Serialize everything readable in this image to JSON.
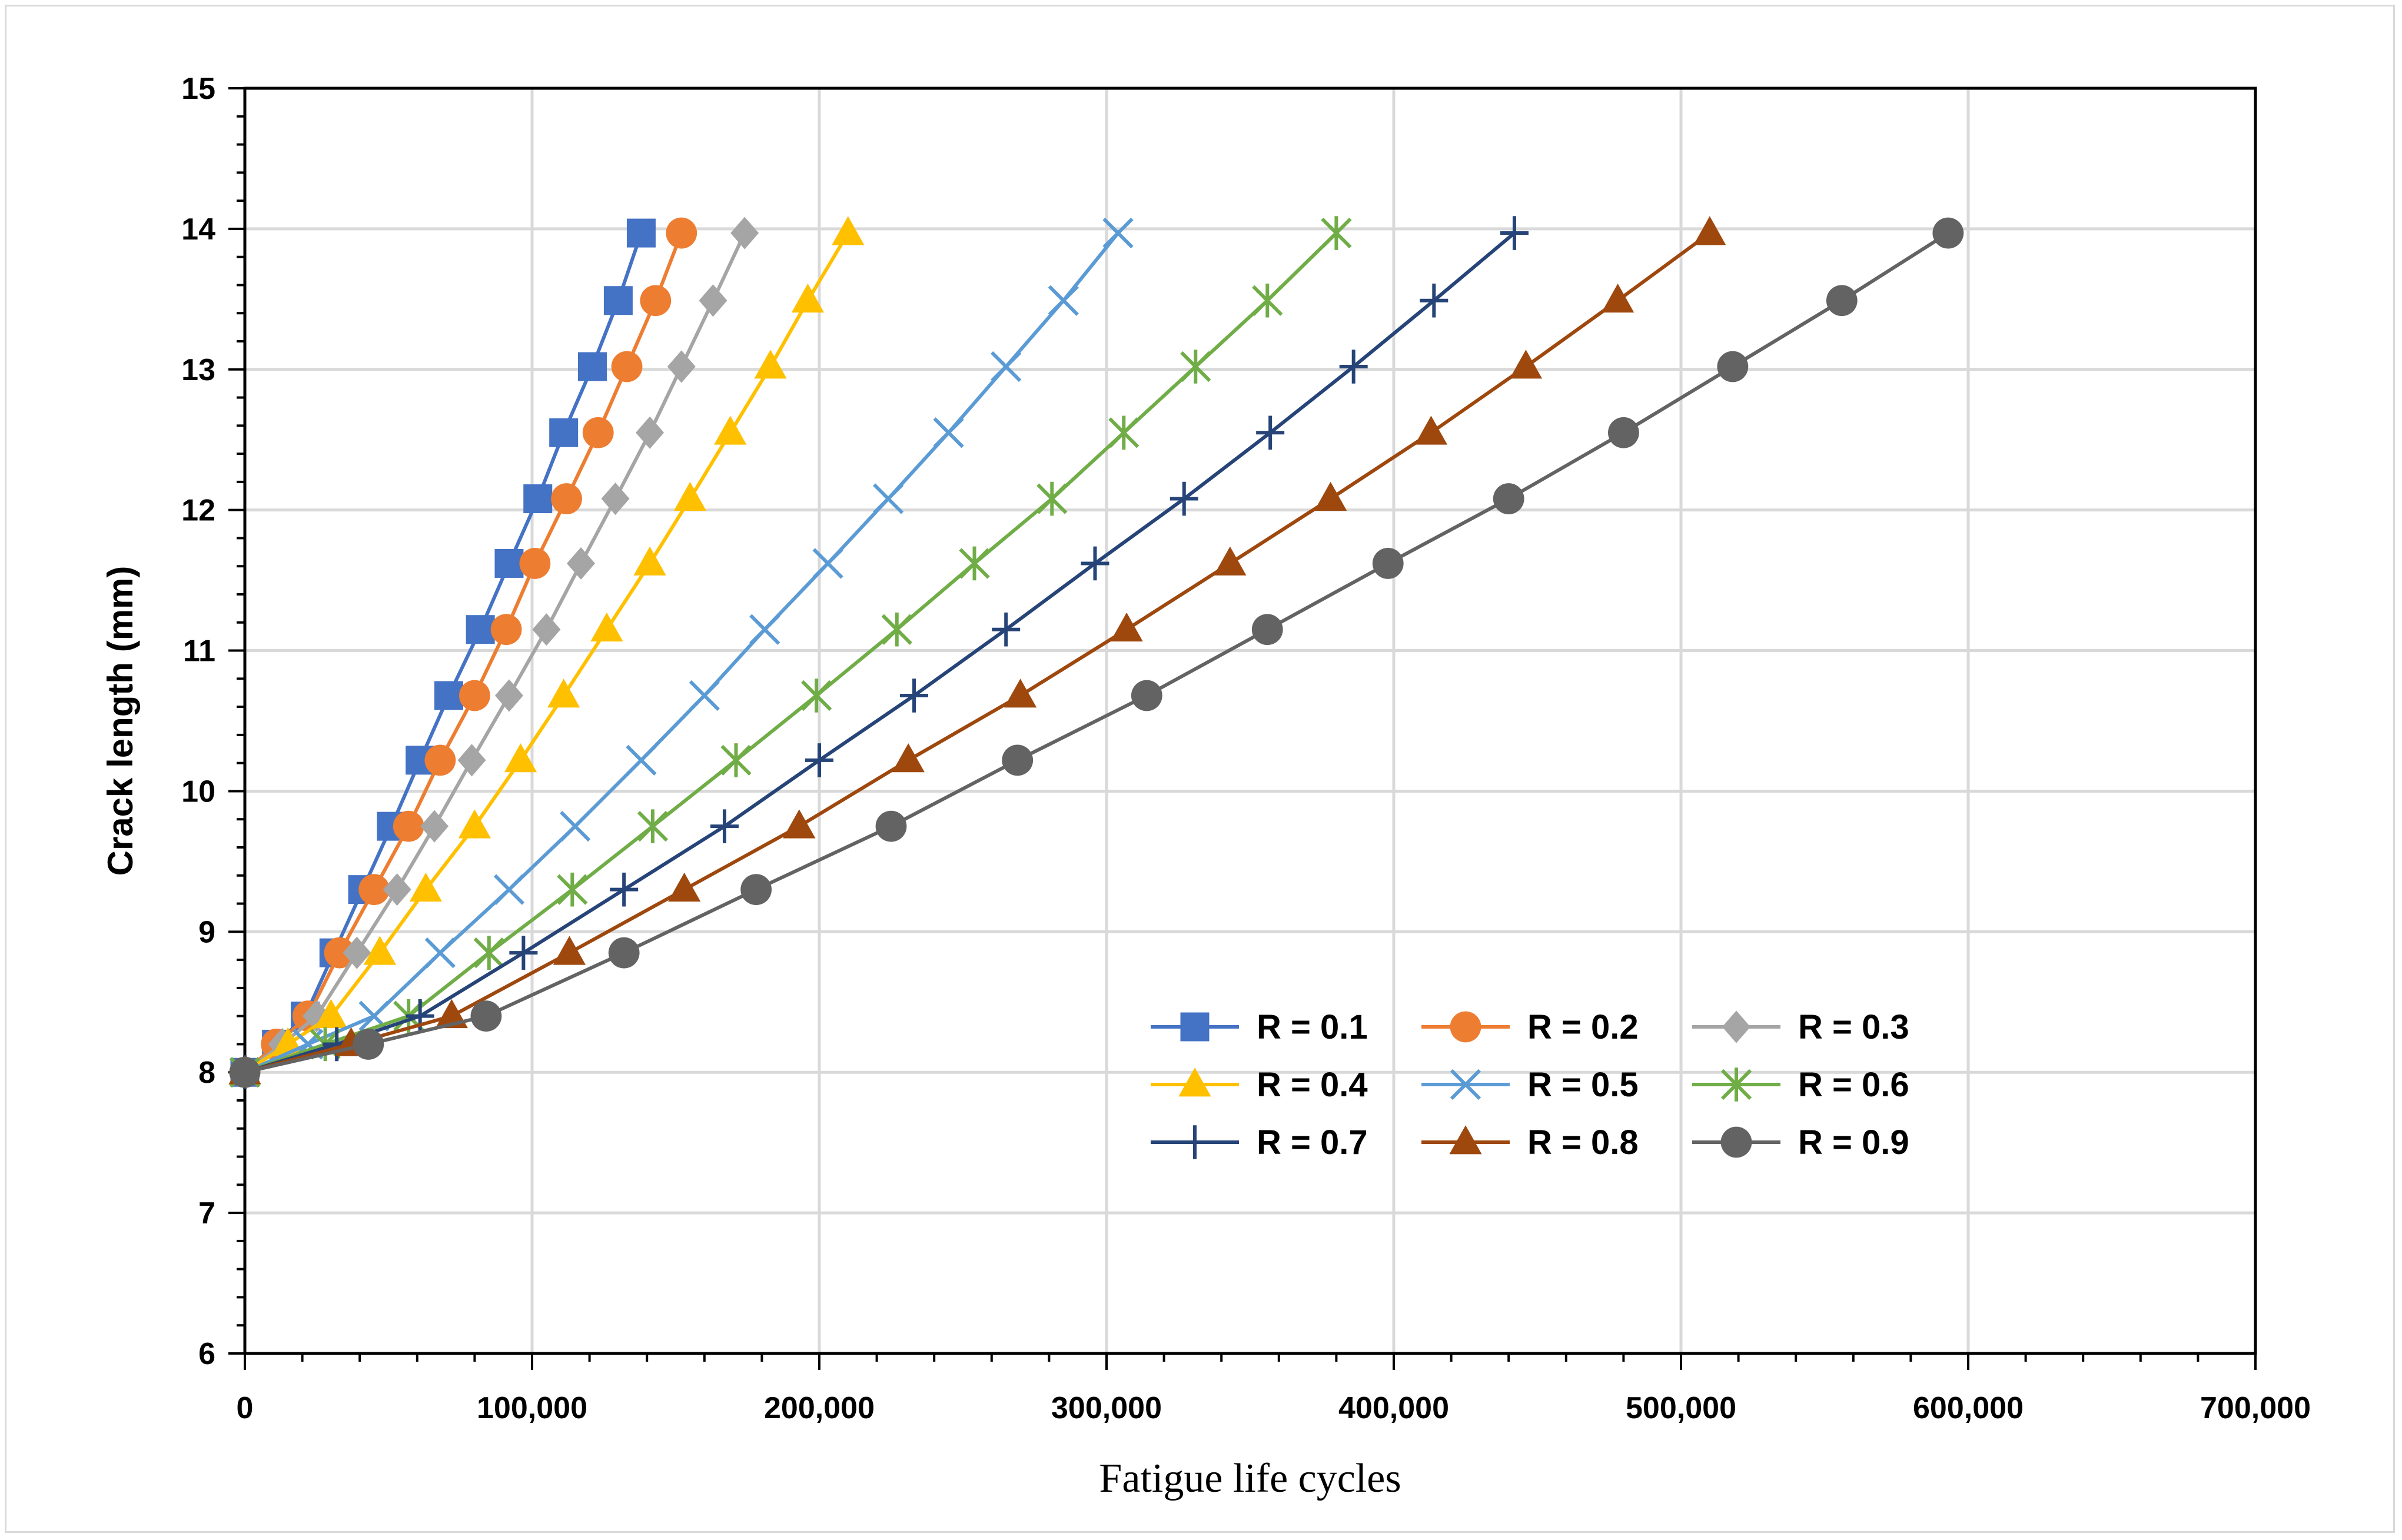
{
  "chart_data": {
    "type": "line",
    "title": "",
    "xlabel": "Fatigue life cycles",
    "ylabel": "Crack length (mm)",
    "xlim": [
      0,
      700000
    ],
    "ylim": [
      6,
      15
    ],
    "x_ticks": [
      "0",
      "100,000",
      "200,000",
      "300,000",
      "400,000",
      "500,000",
      "600,000",
      "700,000"
    ],
    "y_ticks": [
      "6",
      "7",
      "8",
      "9",
      "10",
      "11",
      "12",
      "13",
      "14",
      "15"
    ],
    "grid": true,
    "legend_position": "lower-right",
    "y": [
      8.0,
      8.2,
      8.4,
      8.85,
      9.3,
      9.75,
      10.22,
      10.68,
      11.15,
      11.62,
      12.08,
      12.55,
      13.02,
      13.49,
      13.97
    ],
    "series": [
      {
        "name": "R = 0.1",
        "color": "#4472c4",
        "marker": "square",
        "x": [
          0,
          11000,
          21000,
          31000,
          41000,
          51000,
          61000,
          71000,
          82000,
          92000,
          102000,
          111000,
          121000,
          130000,
          138000
        ]
      },
      {
        "name": "R = 0.2",
        "color": "#ed7d31",
        "marker": "circle",
        "x": [
          0,
          11000,
          22000,
          33000,
          45000,
          57000,
          68000,
          80000,
          91000,
          101000,
          112000,
          123000,
          133000,
          143000,
          152000
        ]
      },
      {
        "name": "R = 0.3",
        "color": "#a5a5a5",
        "marker": "diamond",
        "x": [
          0,
          13000,
          25000,
          39000,
          53000,
          66000,
          79000,
          92000,
          105000,
          117000,
          129000,
          141000,
          152000,
          163000,
          174000
        ]
      },
      {
        "name": "R = 0.4",
        "color": "#ffc000",
        "marker": "triangle",
        "x": [
          0,
          15000,
          30000,
          47000,
          63000,
          80000,
          96000,
          111000,
          126000,
          141000,
          155000,
          169000,
          183000,
          196000,
          210000
        ]
      },
      {
        "name": "R = 0.5",
        "color": "#5b9bd5",
        "marker": "x",
        "x": [
          0,
          22000,
          45000,
          68000,
          92000,
          115000,
          138000,
          160000,
          181000,
          203000,
          224000,
          245000,
          265000,
          285000,
          304000
        ]
      },
      {
        "name": "R = 0.6",
        "color": "#70ad47",
        "marker": "asterisk",
        "x": [
          0,
          28000,
          57000,
          85000,
          114000,
          142000,
          171000,
          199000,
          227000,
          254000,
          281000,
          306000,
          331000,
          356000,
          380000
        ]
      },
      {
        "name": "R = 0.7",
        "color": "#264478",
        "marker": "plus",
        "x": [
          0,
          32000,
          61000,
          97000,
          132000,
          167000,
          200000,
          233000,
          265000,
          296000,
          327000,
          357000,
          386000,
          414000,
          442000
        ]
      },
      {
        "name": "R = 0.8",
        "color": "#9e480e",
        "marker": "triangle",
        "x": [
          0,
          37000,
          72000,
          113000,
          153000,
          193000,
          231000,
          270000,
          307000,
          343000,
          378000,
          413000,
          446000,
          478000,
          510000
        ]
      },
      {
        "name": "R = 0.9",
        "color": "#636363",
        "marker": "circle",
        "x": [
          0,
          43000,
          84000,
          132000,
          178000,
          225000,
          269000,
          314000,
          356000,
          398000,
          440000,
          480000,
          518000,
          556000,
          593000
        ]
      }
    ]
  }
}
